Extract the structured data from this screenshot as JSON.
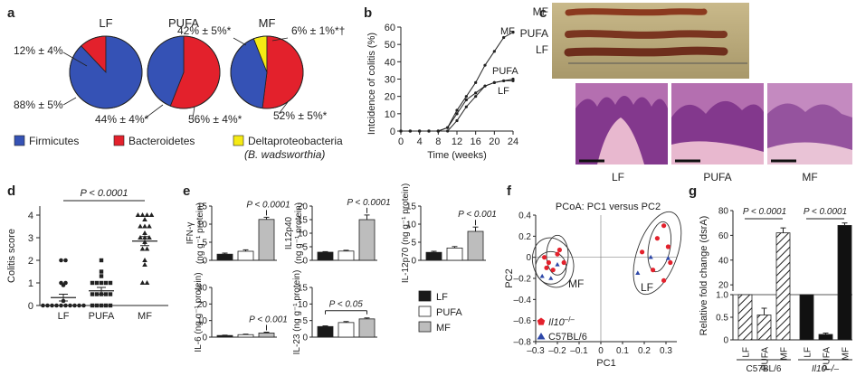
{
  "chart_data": [
    {
      "panel": "a",
      "type": "pie",
      "pies": [
        {
          "title": "LF",
          "slices": [
            {
              "label": "Firmicutes",
              "value": 88,
              "text": "88% ± 5%"
            },
            {
              "label": "Bacteroidetes",
              "value": 12,
              "text": "12% ± 4%"
            }
          ]
        },
        {
          "title": "PUFA",
          "slices": [
            {
              "label": "Firmicutes",
              "value": 44,
              "text": "44% ± 4%*"
            },
            {
              "label": "Bacteroidetes",
              "value": 56,
              "text": "56% ± 4%*"
            }
          ]
        },
        {
          "title": "MF",
          "slices": [
            {
              "label": "Firmicutes",
              "value": 42,
              "text": "42% ± 5%*"
            },
            {
              "label": "Bacteroidetes",
              "value": 52,
              "text": "52% ± 5%*"
            },
            {
              "label": "Deltaproteobacteria",
              "value": 6,
              "text": "6% ± 1%*†"
            }
          ]
        }
      ],
      "legend": [
        {
          "label": "Firmicutes",
          "color": "#3552b5"
        },
        {
          "label": "Bacteroidetes",
          "color": "#e3212c"
        },
        {
          "label": "Deltaproteobacteria",
          "sub": "(B. wadsworthia)",
          "color": "#f5ea14"
        }
      ]
    },
    {
      "panel": "b",
      "type": "line",
      "xlabel": "Time (weeks)",
      "ylabel": "Intcidence of colitis (%)",
      "xticks": [
        "0",
        "4",
        "8",
        "12",
        "16",
        "20",
        "24"
      ],
      "yticks": [
        "0",
        "10",
        "20",
        "30",
        "40",
        "50",
        "60"
      ],
      "xlim": [
        0,
        24
      ],
      "ylim": [
        0,
        60
      ],
      "series": [
        {
          "name": "MF",
          "x": [
            0,
            2,
            4,
            6,
            8,
            10,
            12,
            14,
            16,
            18,
            20,
            22,
            24
          ],
          "y": [
            0,
            0,
            0,
            0,
            0,
            2,
            12,
            20,
            28,
            38,
            46,
            54,
            57
          ]
        },
        {
          "name": "PUFA",
          "x": [
            0,
            2,
            4,
            6,
            8,
            10,
            12,
            14,
            16,
            18,
            20,
            22,
            24
          ],
          "y": [
            0,
            0,
            0,
            0,
            0,
            2,
            10,
            18,
            22,
            26,
            28,
            29,
            30
          ]
        },
        {
          "name": "LF",
          "x": [
            0,
            2,
            4,
            6,
            8,
            10,
            12,
            14,
            16,
            18,
            20,
            22,
            24
          ],
          "y": [
            0,
            0,
            0,
            0,
            0,
            0,
            6,
            14,
            20,
            26,
            28,
            29,
            29
          ]
        }
      ]
    },
    {
      "panel": "c",
      "type": "image",
      "top_labels": [
        "MF",
        "PUFA",
        "LF"
      ],
      "bottom_labels": [
        "LF",
        "PUFA",
        "MF"
      ]
    },
    {
      "panel": "d",
      "type": "scatter",
      "ylabel": "Colitis score",
      "categories": [
        "LF",
        "PUFA",
        "MF"
      ],
      "yticks": [
        "0",
        "1",
        "2",
        "3",
        "4"
      ],
      "ylim": [
        0,
        4.4
      ],
      "pvalue": "P < 0.0001",
      "groups": [
        {
          "name": "LF",
          "marker": "circle",
          "mean": 0.35,
          "sem": 0.15,
          "points": [
            0,
            0,
            0,
            0,
            0,
            0,
            0,
            0,
            0,
            0,
            0.2,
            0.9,
            1.0,
            1.0,
            2.0,
            2.0
          ]
        },
        {
          "name": "PUFA",
          "marker": "square",
          "mean": 0.65,
          "sem": 0.15,
          "points": [
            0,
            0,
            0,
            0,
            0,
            0.5,
            0.5,
            0.5,
            0.5,
            0.5,
            1.0,
            1.0,
            1.0,
            1.0,
            1.0,
            1.3,
            1.5,
            2.0
          ]
        },
        {
          "name": "MF",
          "marker": "triangle",
          "mean": 2.85,
          "sem": 0.2,
          "points": [
            1.0,
            1.0,
            1.8,
            2.0,
            2.5,
            2.5,
            2.8,
            3.0,
            3.0,
            3.0,
            3.2,
            3.5,
            3.5,
            3.5,
            3.8,
            4.0,
            4.0,
            4.0,
            4.0
          ]
        }
      ]
    },
    {
      "panel": "e",
      "type": "bar",
      "categories": [
        "LF",
        "PUFA",
        "MF"
      ],
      "legend": [
        {
          "label": "LF",
          "color": "#1a1a1a"
        },
        {
          "label": "PUFA",
          "color": "#ffffff"
        },
        {
          "label": "MF",
          "color": "#bdbdbd"
        }
      ],
      "subplots": [
        {
          "ylabel_main": "IFN-γ",
          "ylabel_unit": "(ng g⁻¹ protein)",
          "yticks": [
            "0",
            "5",
            "10",
            "15"
          ],
          "ylim": [
            0,
            15
          ],
          "values": [
            1.7,
            2.5,
            11.3
          ],
          "errors": [
            0.3,
            0.4,
            0.6
          ],
          "pvalue": "P < 0.0001"
        },
        {
          "ylabel_main": "IL12p40",
          "ylabel_unit": "(ng g⁻¹ protein)",
          "yticks": [
            "0",
            "5",
            "10",
            "15",
            "20"
          ],
          "ylim": [
            0,
            20
          ],
          "values": [
            3.0,
            3.4,
            15.0
          ],
          "errors": [
            0.2,
            0.3,
            1.7
          ],
          "pvalue": "P < 0.0001"
        },
        {
          "ylabel_main": "IL-12p70 (ng g⁻¹ protein)",
          "ylabel_unit": "",
          "yticks": [
            "0",
            "5",
            "10",
            "15"
          ],
          "ylim": [
            0,
            15
          ],
          "values": [
            2.2,
            3.4,
            8.0
          ],
          "errors": [
            0.3,
            0.4,
            1.2
          ],
          "pvalue": "P < 0.001"
        },
        {
          "ylabel_main": "IL-6 (ng g⁻¹ protein)",
          "ylabel_unit": "",
          "yticks": [
            "0",
            "10",
            "20",
            "30"
          ],
          "ylim": [
            0,
            30
          ],
          "values": [
            1.0,
            1.5,
            2.5
          ],
          "errors": [
            0.2,
            0.3,
            0.5
          ],
          "pvalue": "P < 0.001"
        },
        {
          "ylabel_main": "IL-23 (ng g⁻¹ protein)",
          "ylabel_unit": "",
          "yticks": [
            "0",
            "5",
            "10",
            "15"
          ],
          "ylim": [
            0,
            15
          ],
          "values": [
            3.2,
            4.4,
            5.5
          ],
          "errors": [
            0.2,
            0.3,
            0.3
          ],
          "pvalue": "P < 0.05"
        }
      ]
    },
    {
      "panel": "f",
      "type": "scatter",
      "title": "PCoA: PC1 versus PC2",
      "xlabel": "PC1",
      "ylabel": "PC2",
      "xticks": [
        "–0.3",
        "–0.2",
        "–0.1",
        "0",
        "0.1",
        "0.2",
        "0.3"
      ],
      "yticks": [
        "–0.8",
        "–0.6",
        "–0.4",
        "–0.2",
        "0",
        "0.2",
        "0.4"
      ],
      "xlim": [
        -0.3,
        0.35
      ],
      "ylim": [
        -0.8,
        0.4
      ],
      "group_labels": [
        "MF",
        "LF"
      ],
      "legend": [
        {
          "label_main": "Il10",
          "label_sup": "–/–",
          "marker": "pentagon",
          "color": "#e3212c"
        },
        {
          "label_main": "C57BL/6",
          "label_sup": "",
          "marker": "triangle",
          "color": "#2d47a8"
        }
      ],
      "points": [
        {
          "x": -0.26,
          "y": 0.0,
          "g": "il10"
        },
        {
          "x": -0.24,
          "y": -0.05,
          "g": "il10"
        },
        {
          "x": -0.2,
          "y": 0.03,
          "g": "il10"
        },
        {
          "x": -0.17,
          "y": -0.05,
          "g": "il10"
        },
        {
          "x": -0.25,
          "y": -0.1,
          "g": "il10"
        },
        {
          "x": -0.22,
          "y": -0.12,
          "g": "il10"
        },
        {
          "x": -0.19,
          "y": 0.07,
          "g": "il10"
        },
        {
          "x": -0.27,
          "y": -0.18,
          "g": "b6"
        },
        {
          "x": -0.23,
          "y": -0.2,
          "g": "b6"
        },
        {
          "x": -0.2,
          "y": -0.07,
          "g": "b6"
        },
        {
          "x": 0.29,
          "y": 0.3,
          "g": "il10"
        },
        {
          "x": 0.26,
          "y": 0.18,
          "g": "il10"
        },
        {
          "x": 0.31,
          "y": 0.1,
          "g": "il10"
        },
        {
          "x": 0.19,
          "y": 0.05,
          "g": "il10"
        },
        {
          "x": 0.24,
          "y": -0.12,
          "g": "il10"
        },
        {
          "x": 0.29,
          "y": -0.22,
          "g": "il10"
        },
        {
          "x": 0.32,
          "y": -0.05,
          "g": "il10"
        },
        {
          "x": 0.23,
          "y": 0.0,
          "g": "b6"
        },
        {
          "x": 0.31,
          "y": -0.01,
          "g": "b6"
        },
        {
          "x": 0.17,
          "y": -0.15,
          "g": "b6"
        }
      ]
    },
    {
      "panel": "g",
      "type": "bar",
      "ylabel": "Relative fold change (dsrA)",
      "yticks_low": [
        "0",
        "0.5",
        "1.0"
      ],
      "yticks_high": [
        "20",
        "40",
        "60",
        "80"
      ],
      "categories": [
        "LF",
        "PUFA",
        "MF",
        "LF",
        "PUFA",
        "MF"
      ],
      "group_labels": [
        "C57BL/6",
        "Il10–/–"
      ],
      "pvalues": [
        "P < 0.0001",
        "P < 0.0001"
      ],
      "values": [
        1.0,
        0.55,
        62,
        1.0,
        0.12,
        68
      ],
      "errors": [
        0.0,
        0.15,
        4,
        0.0,
        0.03,
        2
      ],
      "styles": [
        "hatch",
        "hatch",
        "hatch",
        "solid",
        "solid",
        "solid"
      ]
    }
  ]
}
